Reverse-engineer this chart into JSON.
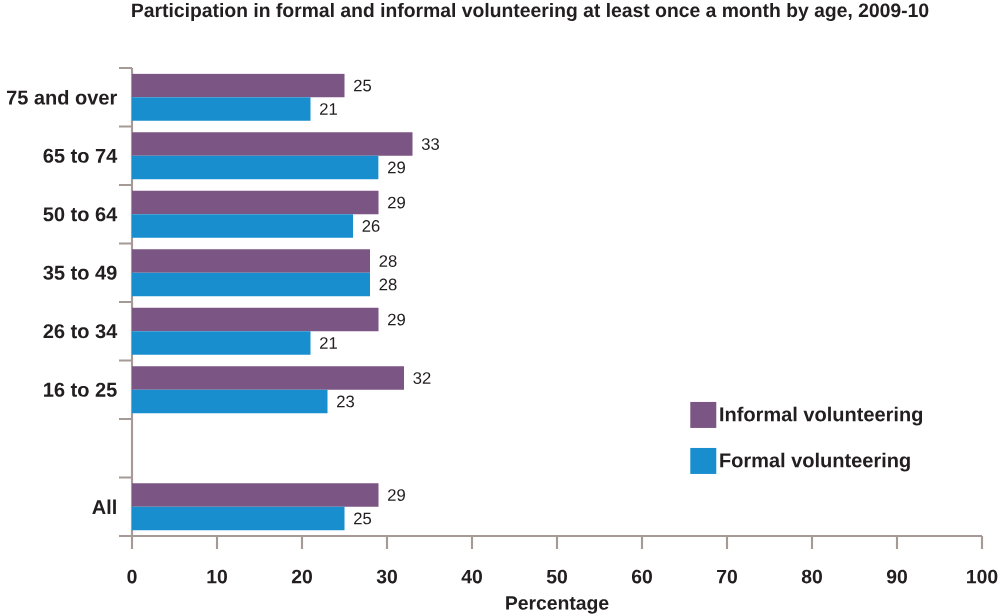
{
  "chart_data": {
    "type": "bar",
    "orientation": "horizontal",
    "title": "Participation in formal and informal volunteering at least once a month by age, 2009-10",
    "xlabel": "Percentage",
    "categories": [
      "75 and over",
      "65 to 74",
      "50 to 64",
      "35 to 49",
      "26 to 34",
      "16 to 25",
      null,
      "All"
    ],
    "series": [
      {
        "name": "Informal volunteering",
        "color": "#7b5583",
        "values": [
          25,
          33,
          29,
          28,
          29,
          32,
          null,
          29
        ]
      },
      {
        "name": "Formal volunteering",
        "color": "#198ecf",
        "values": [
          21,
          29,
          26,
          28,
          21,
          23,
          null,
          25
        ]
      }
    ],
    "xlim": [
      0,
      100
    ],
    "xticks": [
      0,
      10,
      20,
      30,
      40,
      50,
      60,
      70,
      80,
      90,
      100
    ],
    "data_labels": true,
    "legend": "bottom right"
  }
}
